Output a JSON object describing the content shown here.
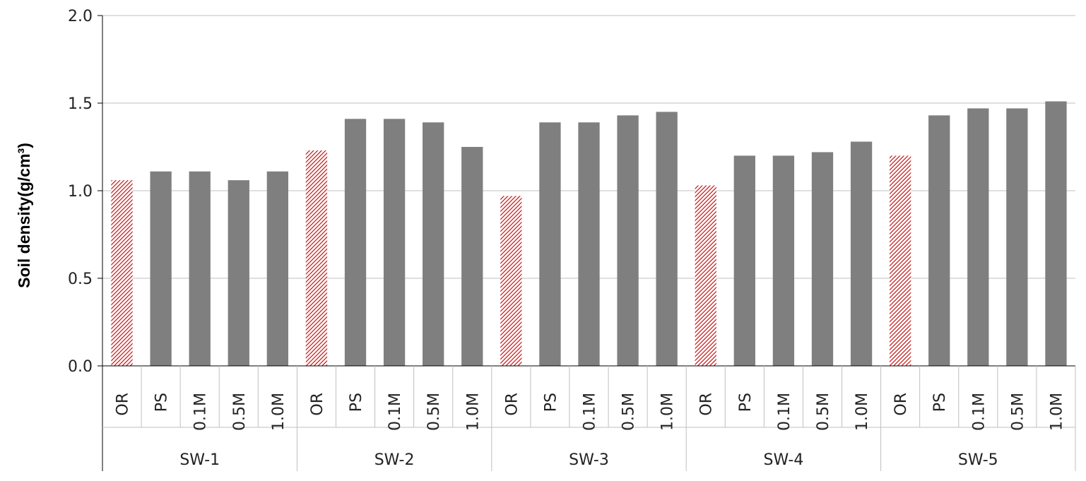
{
  "chart_data": {
    "type": "bar",
    "title": "",
    "xlabel": "",
    "ylabel": "Soil density(g/cm³)",
    "ylim": [
      0,
      2.0
    ],
    "yticks": [
      "0.0",
      "0.5",
      "1.0",
      "1.5",
      "2.0"
    ],
    "grid": true,
    "legend": "none",
    "groups": [
      {
        "name": "SW-1",
        "categories": [
          "OR",
          "PS",
          "0.1M",
          "0.5M",
          "1.0M"
        ],
        "values": [
          1.06,
          1.11,
          1.11,
          1.06,
          1.11
        ]
      },
      {
        "name": "SW-2",
        "categories": [
          "OR",
          "PS",
          "0.1M",
          "0.5M",
          "1.0M"
        ],
        "values": [
          1.23,
          1.41,
          1.41,
          1.39,
          1.25
        ]
      },
      {
        "name": "SW-3",
        "categories": [
          "OR",
          "PS",
          "0.1M",
          "0.5M",
          "1.0M"
        ],
        "values": [
          0.97,
          1.39,
          1.39,
          1.43,
          1.45
        ]
      },
      {
        "name": "SW-4",
        "categories": [
          "OR",
          "PS",
          "0.1M",
          "0.5M",
          "1.0M"
        ],
        "values": [
          1.03,
          1.2,
          1.2,
          1.22,
          1.28
        ]
      },
      {
        "name": "SW-5",
        "categories": [
          "OR",
          "PS",
          "0.1M",
          "0.5M",
          "1.0M"
        ],
        "values": [
          1.2,
          1.43,
          1.47,
          1.47,
          1.51
        ]
      }
    ],
    "colors": {
      "default_bar": "#7f7f7f",
      "highlight_bar": "#c00000",
      "highlight_category": "OR",
      "grid": "#bfbfbf",
      "axis": "#000000"
    }
  }
}
